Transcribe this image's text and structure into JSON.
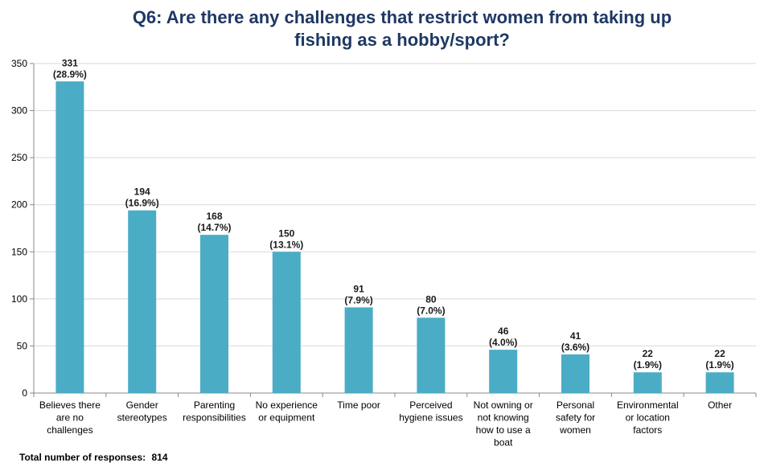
{
  "chart_data": {
    "type": "bar",
    "title_lines": [
      "Q6: Are there any challenges that restrict women from taking up",
      "fishing as a hobby/sport?"
    ],
    "categories": [
      [
        "Believes there",
        "are no",
        "challenges"
      ],
      [
        "Gender",
        "stereotypes"
      ],
      [
        "Parenting",
        "responsibilities"
      ],
      [
        "No experience",
        "or equipment"
      ],
      [
        "Time poor"
      ],
      [
        "Perceived",
        "hygiene issues"
      ],
      [
        "Not owning or",
        "not knowing",
        "how to use a",
        "boat"
      ],
      [
        "Personal",
        "safety for",
        "women"
      ],
      [
        "Environmental",
        "or location",
        "factors"
      ],
      [
        "Other"
      ]
    ],
    "values": [
      331,
      194,
      168,
      150,
      91,
      80,
      46,
      41,
      22,
      22
    ],
    "percent_labels": [
      "(28.9%)",
      "(16.9%)",
      "(14.7%)",
      "(13.1%)",
      "(7.9%)",
      "(7.0%)",
      "(4.0%)",
      "(3.6%)",
      "(1.9%)",
      "(1.9%)"
    ],
    "ylim": [
      0,
      350
    ],
    "yticks": [
      0,
      50,
      100,
      150,
      200,
      250,
      300,
      350
    ],
    "bar_color": "#4bacc6",
    "grid": true
  },
  "footer": {
    "label": "Total number of responses:",
    "value": "814"
  }
}
